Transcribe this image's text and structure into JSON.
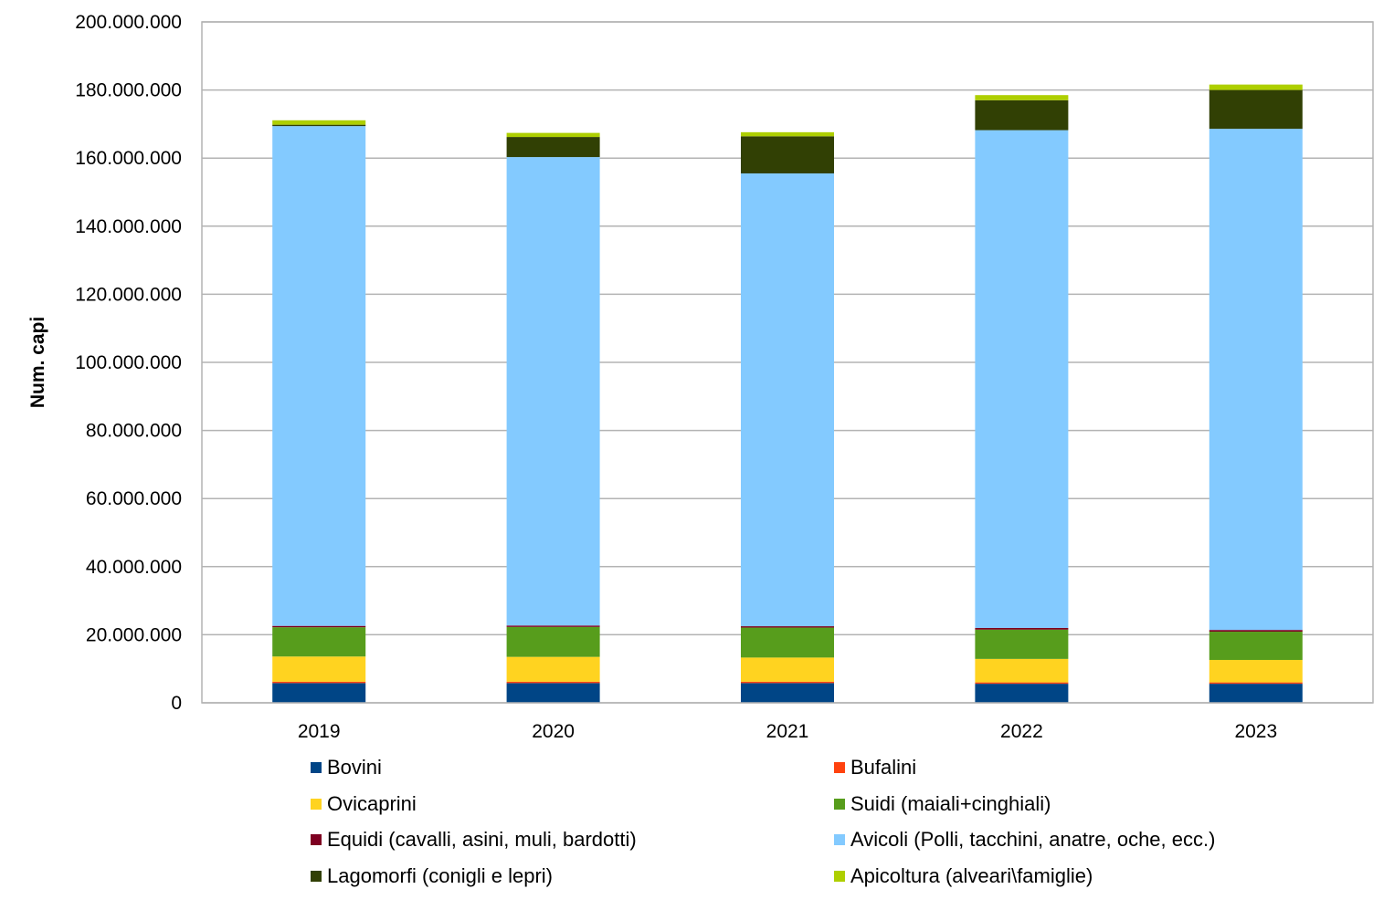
{
  "chart_data": {
    "type": "bar",
    "stacked": true,
    "title": "",
    "xlabel": "",
    "ylabel": "Num. capi",
    "ylim": [
      0,
      200000000
    ],
    "yticks": [
      0,
      20000000,
      40000000,
      60000000,
      80000000,
      100000000,
      120000000,
      140000000,
      160000000,
      180000000,
      200000000
    ],
    "ytick_labels": [
      "0",
      "20.000.000",
      "40.000.000",
      "60.000.000",
      "80.000.000",
      "100.000.000",
      "120.000.000",
      "140.000.000",
      "160.000.000",
      "180.000.000",
      "200.000.000"
    ],
    "grid": true,
    "legend_position": "bottom",
    "categories": [
      "2019",
      "2020",
      "2021",
      "2022",
      "2023"
    ],
    "series": [
      {
        "name": "Bovini",
        "color": "#004586",
        "values": [
          5800000,
          5800000,
          5800000,
          5600000,
          5600000
        ]
      },
      {
        "name": "Bufalini",
        "color": "#ff420e",
        "values": [
          400000,
          400000,
          400000,
          400000,
          400000
        ]
      },
      {
        "name": "Ovicaprini",
        "color": "#ffd320",
        "values": [
          7400000,
          7300000,
          7100000,
          6900000,
          6600000
        ]
      },
      {
        "name": "Suidi (maiali+cinghiali)",
        "color": "#579d1c",
        "values": [
          8600000,
          8800000,
          8800000,
          8600000,
          8300000
        ]
      },
      {
        "name": "Equidi (cavalli, asini, muli, bardotti)",
        "color": "#7e0021",
        "values": [
          400000,
          400000,
          400000,
          500000,
          500000
        ]
      },
      {
        "name": "Avicoli (Polli, tacchini, anatre, oche, ecc.)",
        "color": "#83caff",
        "values": [
          146800000,
          137600000,
          133000000,
          146200000,
          147200000
        ]
      },
      {
        "name": "Lagomorfi (conigli e lepri)",
        "color": "#314004",
        "values": [
          400000,
          5900000,
          10900000,
          8800000,
          11400000
        ]
      },
      {
        "name": "Apicoltura (alveari\\famiglie)",
        "color": "#aecf00",
        "values": [
          1300000,
          1200000,
          1200000,
          1500000,
          1600000
        ]
      }
    ]
  }
}
